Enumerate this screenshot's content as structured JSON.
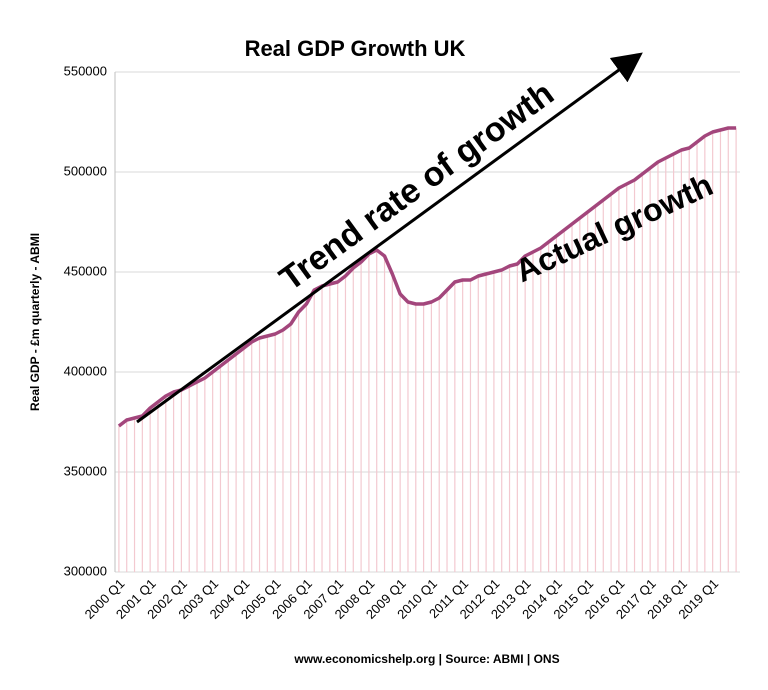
{
  "chart_data": {
    "type": "line",
    "title": "Real GDP Growth UK",
    "y_label": "Real GDP - £m quarterly - ABMI",
    "footer": "www.economicshelp.org | Source:  ABMI | ONS",
    "annotations": [
      "Trend rate of growth",
      "Actual growth"
    ],
    "categories": [
      "2000 Q1",
      null,
      null,
      null,
      "2001 Q1",
      null,
      null,
      null,
      "2002 Q1",
      null,
      null,
      null,
      "2003 Q1",
      null,
      null,
      null,
      "2004 Q1",
      null,
      null,
      null,
      "2005 Q1",
      null,
      null,
      null,
      "2006 Q1",
      null,
      null,
      null,
      "2007 Q1",
      null,
      null,
      null,
      "2008 Q1",
      null,
      null,
      null,
      "2009 Q1",
      null,
      null,
      null,
      "2010 Q1",
      null,
      null,
      null,
      "2011 Q1",
      null,
      null,
      null,
      "2012 Q1",
      null,
      null,
      null,
      "2013 Q1",
      null,
      null,
      null,
      "2014 Q1",
      null,
      null,
      null,
      "2015 Q1",
      null,
      null,
      null,
      "2016 Q1",
      null,
      null,
      null,
      "2017 Q1",
      null,
      null,
      null,
      "2018 Q1",
      null,
      null,
      null,
      "2019 Q1",
      null,
      null,
      null
    ],
    "values": [
      373000,
      376000,
      377000,
      378000,
      382000,
      385000,
      388000,
      390000,
      391000,
      393000,
      395000,
      397000,
      400000,
      403000,
      406000,
      409000,
      412000,
      415000,
      417000,
      418000,
      419000,
      421000,
      424000,
      430000,
      434000,
      441000,
      443000,
      444000,
      445000,
      448000,
      452000,
      455000,
      459000,
      461000,
      458000,
      449000,
      439000,
      435000,
      434000,
      434000,
      435000,
      437000,
      441000,
      445000,
      446000,
      446000,
      448000,
      449000,
      450000,
      451000,
      453000,
      454000,
      458000,
      460000,
      462000,
      465000,
      468000,
      471000,
      474000,
      477000,
      480000,
      483000,
      486000,
      489000,
      492000,
      494000,
      496000,
      499000,
      502000,
      505000,
      507000,
      509000,
      511000,
      512000,
      515000,
      518000,
      520000,
      521000,
      522000,
      522000
    ],
    "color": "#a3467c",
    "drop_color": "#f3c9d0",
    "ylim": [
      300000,
      550000
    ],
    "yticks": [
      300000,
      350000,
      400000,
      450000,
      500000,
      550000
    ],
    "grid": true
  }
}
